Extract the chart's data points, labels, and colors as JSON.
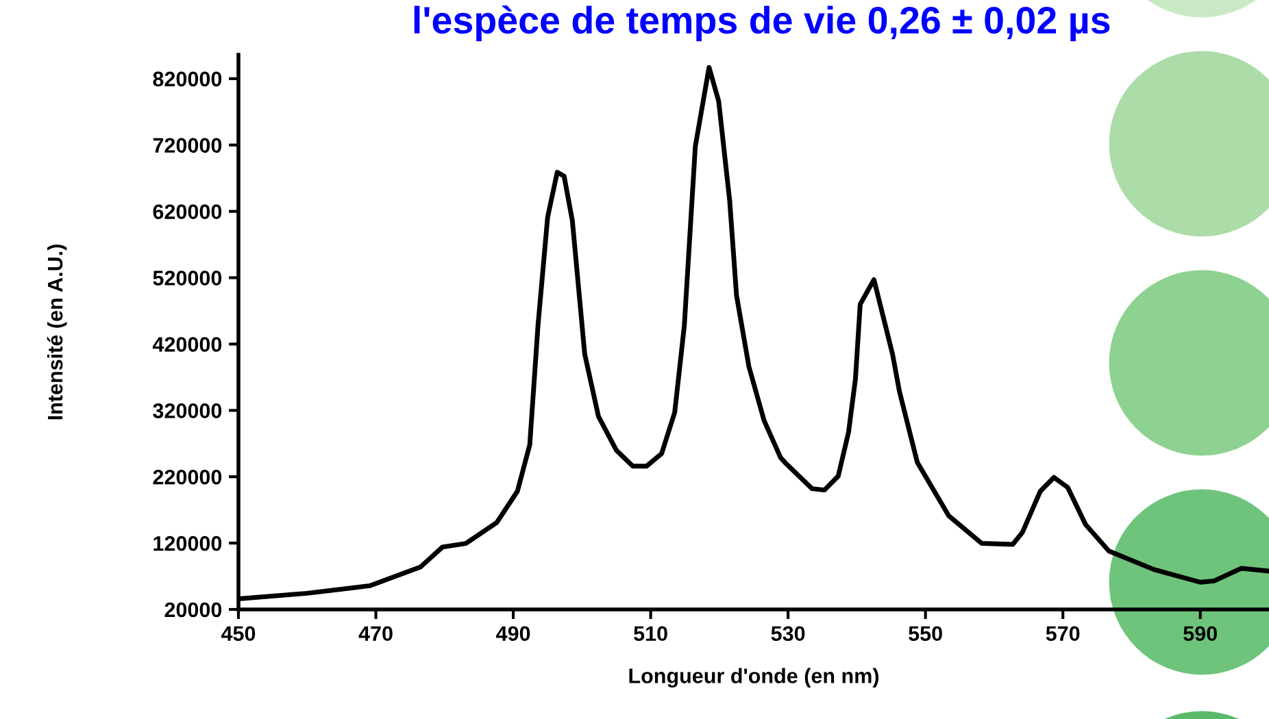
{
  "chart_data": {
    "type": "line",
    "title": "l'espèce de temps de vie 0,26 ± 0,02 µs",
    "xlabel": "Longueur d'onde (en nm)",
    "ylabel": "Intensité (en A.U.)",
    "xlim": [
      450,
      600
    ],
    "xticks": [
      450,
      470,
      490,
      510,
      530,
      550,
      570,
      590
    ],
    "ylim": [
      20000,
      856000
    ],
    "yticks": [
      20000,
      120000,
      220000,
      320000,
      420000,
      520000,
      620000,
      720000,
      820000
    ],
    "grid": false,
    "legend": false,
    "marker": "none",
    "line_style": "solid",
    "series": [
      {
        "color": "#000000",
        "x": [
          450,
          460,
          469.1,
          476.5,
          479.7,
          483.1,
          487.6,
          490.6,
          492.4,
          493.6,
          495.0,
          496.4,
          497.4,
          498.6,
          500.4,
          502.4,
          505.0,
          507.4,
          509.4,
          511.6,
          513.5,
          514.9,
          516.5,
          518.5,
          519.9,
          521.5,
          522.5,
          524.3,
          526.5,
          528.9,
          529.5,
          533.5,
          535.3,
          537.3,
          538.8,
          539.8,
          540.5,
          542.5,
          545.2,
          546.2,
          548.8,
          553.4,
          558.2,
          562.7,
          564.1,
          566.7,
          568.7,
          570.7,
          573.3,
          576.7,
          583.3,
          590.0,
          592.0,
          596.0,
          599.8
        ],
        "values": [
          36000,
          44400,
          55700,
          84000,
          114000,
          119500,
          151000,
          198000,
          268000,
          448000,
          611000,
          679000,
          673000,
          606000,
          405000,
          311000,
          260000,
          236000,
          236000,
          255000,
          317000,
          448000,
          718000,
          837000,
          786000,
          636000,
          493000,
          386000,
          305000,
          249000,
          242000,
          202000,
          200000,
          221000,
          287000,
          367000,
          480000,
          517000,
          405000,
          349000,
          242000,
          161000,
          119500,
          118000,
          136000,
          198000,
          219000,
          204000,
          148000,
          108000,
          80000,
          61000,
          63000,
          82000,
          78000
        ]
      }
    ]
  }
}
